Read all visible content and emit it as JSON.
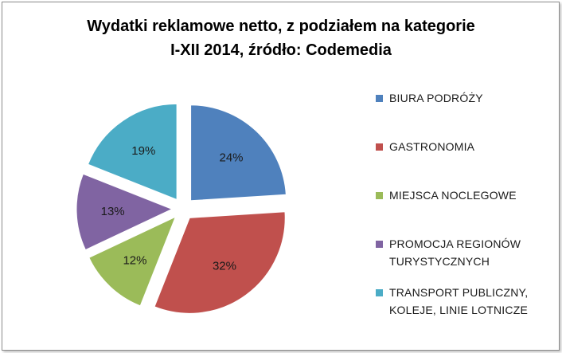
{
  "chart_data": {
    "type": "pie",
    "title_line1": "Wydatki reklamowe netto, z podziałem na kategorie",
    "title_line2": "I-XII 2014, źródło: Codemedia",
    "legend_position": "right",
    "slices": [
      {
        "name": "BIURA PODRÓŻY",
        "name_lines": [
          "BIURA PODRÓŻY"
        ],
        "value": 24,
        "label": "24%",
        "color": "#4f81bd"
      },
      {
        "name": "GASTRONOMIA",
        "name_lines": [
          "GASTRONOMIA"
        ],
        "value": 32,
        "label": "32%",
        "color": "#c0504d"
      },
      {
        "name": "MIEJSCA NOCLEGOWE",
        "name_lines": [
          "MIEJSCA NOCLEGOWE"
        ],
        "value": 12,
        "label": "12%",
        "color": "#9bbb59"
      },
      {
        "name": "PROMOCJA REGIONÓW TURYSTYCZNYCH",
        "name_lines": [
          "PROMOCJA REGIONÓW",
          "TURYSTYCZNYCH"
        ],
        "value": 13,
        "label": "13%",
        "color": "#8064a2"
      },
      {
        "name": "TRANSPORT PUBLICZNY, KOLEJE, LINIE LOTNICZE",
        "name_lines": [
          "TRANSPORT PUBLICZNY,",
          "KOLEJE, LINIE LOTNICZE"
        ],
        "value": 19,
        "label": "19%",
        "color": "#4bacc6"
      }
    ]
  }
}
